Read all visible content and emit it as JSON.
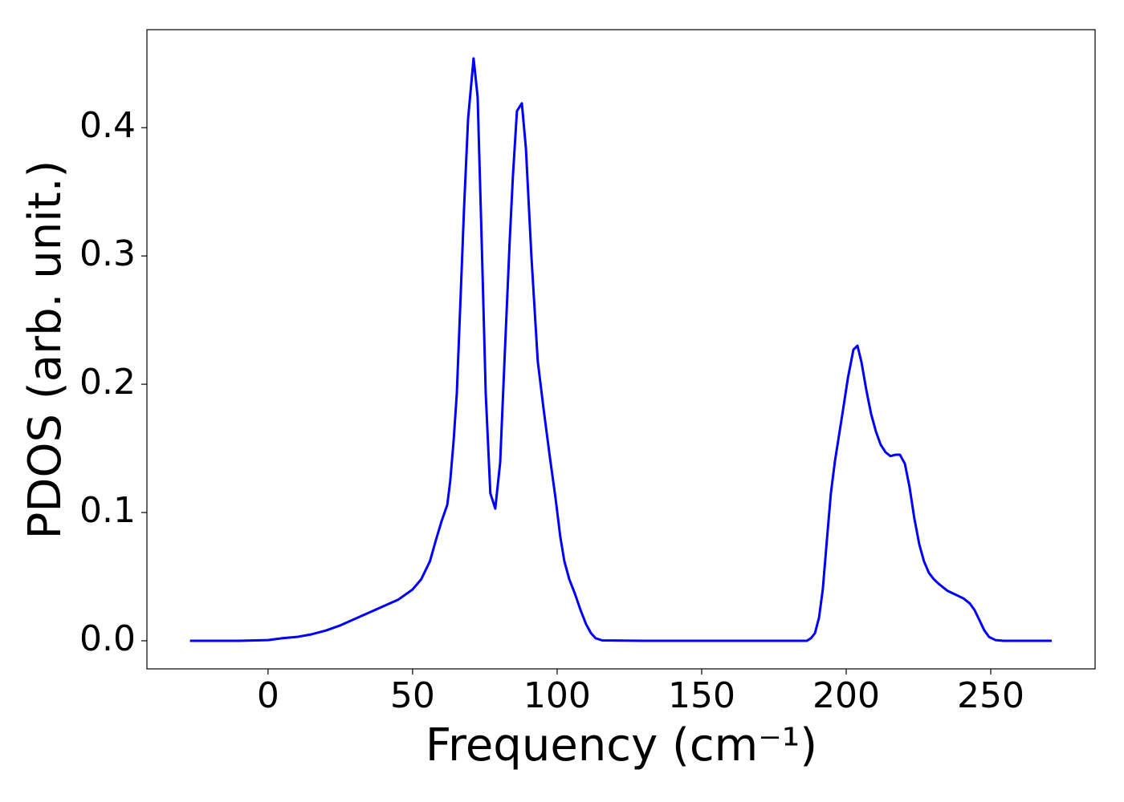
{
  "chart_data": {
    "type": "line",
    "xlabel": "Frequency (cm⁻¹)",
    "ylabel": "PDOS (arb. unit.)",
    "color": "#0000ff",
    "x": [
      -27,
      -20,
      -10,
      0,
      5,
      10,
      15,
      20,
      25,
      30,
      35,
      40,
      45,
      50,
      53,
      56,
      58,
      60,
      62,
      63,
      64.2,
      65.3,
      66.4,
      67.8,
      69.2,
      71.1,
      72.5,
      73.9,
      75.3,
      76.9,
      78.6,
      80.3,
      81.9,
      83.6,
      84.7,
      86.1,
      87.8,
      89.2,
      91.1,
      93.3,
      95.3,
      97.5,
      99.4,
      101.1,
      102.5,
      104.2,
      106.1,
      108.1,
      110,
      111.7,
      113.3,
      115.6,
      130,
      150,
      170,
      186.4,
      187.8,
      189.2,
      190.6,
      191.9,
      193.3,
      194.7,
      196.1,
      197.5,
      198.9,
      200.6,
      202.5,
      203.9,
      205.3,
      207,
      208.6,
      210.3,
      211.9,
      213.6,
      215.3,
      217,
      218.6,
      220.3,
      221.9,
      223.6,
      225.3,
      226.9,
      228.6,
      230.3,
      232.2,
      235,
      237.8,
      240.6,
      242.8,
      244.4,
      246.1,
      247.8,
      249.4,
      251.7,
      254.4,
      271.1
    ],
    "values": [
      0,
      0,
      0,
      0.0005,
      0.002,
      0.003,
      0.005,
      0.008,
      0.012,
      0.017,
      0.022,
      0.027,
      0.032,
      0.04,
      0.048,
      0.062,
      0.078,
      0.093,
      0.106,
      0.124,
      0.156,
      0.193,
      0.256,
      0.337,
      0.407,
      0.454,
      0.424,
      0.312,
      0.193,
      0.115,
      0.103,
      0.139,
      0.224,
      0.312,
      0.362,
      0.413,
      0.419,
      0.384,
      0.3,
      0.218,
      0.181,
      0.143,
      0.112,
      0.081,
      0.062,
      0.048,
      0.037,
      0.024,
      0.013,
      0.006,
      0.002,
      0.0003,
      0,
      0,
      0,
      0,
      0.002,
      0.006,
      0.018,
      0.04,
      0.078,
      0.115,
      0.14,
      0.16,
      0.18,
      0.205,
      0.227,
      0.23,
      0.217,
      0.195,
      0.177,
      0.163,
      0.153,
      0.147,
      0.144,
      0.145,
      0.145,
      0.138,
      0.12,
      0.095,
      0.075,
      0.062,
      0.053,
      0.048,
      0.044,
      0.039,
      0.036,
      0.033,
      0.029,
      0.024,
      0.016,
      0.008,
      0.003,
      0.0005,
      0,
      0
    ],
    "xlim": [
      -41.9,
      286.1
    ],
    "ylim": [
      -0.0219,
      0.4764
    ],
    "xticks": [
      0,
      50,
      100,
      150,
      200,
      250
    ],
    "yticks": [
      {
        "value": 0,
        "label": "0.0"
      },
      0.1,
      0.2,
      0.3,
      0.4
    ],
    "grid": false
  }
}
